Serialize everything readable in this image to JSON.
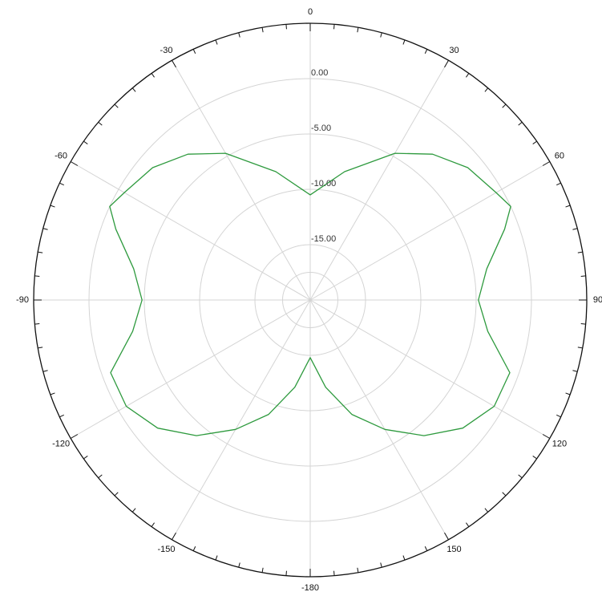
{
  "chart_data": {
    "type": "polar-line",
    "title": "",
    "angle_unit": "degrees",
    "angle_zero": "top",
    "angle_direction": "clockwise",
    "angle_tick_labels": [
      {
        "angle": 0,
        "text": "0"
      },
      {
        "angle": 30,
        "text": "30"
      },
      {
        "angle": 60,
        "text": "60"
      },
      {
        "angle": 90,
        "text": "90"
      },
      {
        "angle": 120,
        "text": "120"
      },
      {
        "angle": 150,
        "text": "150"
      },
      {
        "angle": 180,
        "text": "-180"
      },
      {
        "angle": -150,
        "text": "-150"
      },
      {
        "angle": -120,
        "text": "-120"
      },
      {
        "angle": -90,
        "text": "-90"
      },
      {
        "angle": -60,
        "text": "-60"
      },
      {
        "angle": -30,
        "text": "-30"
      }
    ],
    "radial_axis": {
      "unit": "dB",
      "min": -20,
      "max": 5,
      "rings": [
        0,
        -5,
        -10,
        -15
      ],
      "ring_labels": [
        "0.00",
        "-5.00",
        "-10.00",
        "-15.00"
      ]
    },
    "grid": true,
    "series": [
      {
        "color": "#2e9a3e",
        "points": [
          {
            "angle": 0,
            "value": -10.5
          },
          {
            "angle": 15,
            "value": -8.0
          },
          {
            "angle": 30,
            "value": -4.7
          },
          {
            "angle": 40,
            "value": -2.8
          },
          {
            "angle": 50,
            "value": -1.4
          },
          {
            "angle": 60,
            "value": -0.6
          },
          {
            "angle": 65,
            "value": 0.0
          },
          {
            "angle": 70,
            "value": -1.3
          },
          {
            "angle": 80,
            "value": -3.8
          },
          {
            "angle": 90,
            "value": -4.8
          },
          {
            "angle": 100,
            "value": -3.7
          },
          {
            "angle": 110,
            "value": -0.8
          },
          {
            "angle": 120,
            "value": -0.8
          },
          {
            "angle": 130,
            "value": -2.0
          },
          {
            "angle": 140,
            "value": -4.0
          },
          {
            "angle": 150,
            "value": -6.5
          },
          {
            "angle": 160,
            "value": -9.0
          },
          {
            "angle": 170,
            "value": -12.0
          },
          {
            "angle": 180,
            "value": -14.8
          },
          {
            "angle": -170,
            "value": -12.0
          },
          {
            "angle": -160,
            "value": -9.0
          },
          {
            "angle": -150,
            "value": -6.5
          },
          {
            "angle": -140,
            "value": -4.0
          },
          {
            "angle": -130,
            "value": -2.0
          },
          {
            "angle": -120,
            "value": -0.8
          },
          {
            "angle": -110,
            "value": -0.8
          },
          {
            "angle": -100,
            "value": -3.7
          },
          {
            "angle": -90,
            "value": -4.8
          },
          {
            "angle": -80,
            "value": -3.8
          },
          {
            "angle": -70,
            "value": -1.3
          },
          {
            "angle": -65,
            "value": 0.0
          },
          {
            "angle": -60,
            "value": -0.6
          },
          {
            "angle": -50,
            "value": -1.4
          },
          {
            "angle": -40,
            "value": -2.8
          },
          {
            "angle": -30,
            "value": -4.7
          },
          {
            "angle": -15,
            "value": -8.0
          }
        ]
      }
    ]
  }
}
